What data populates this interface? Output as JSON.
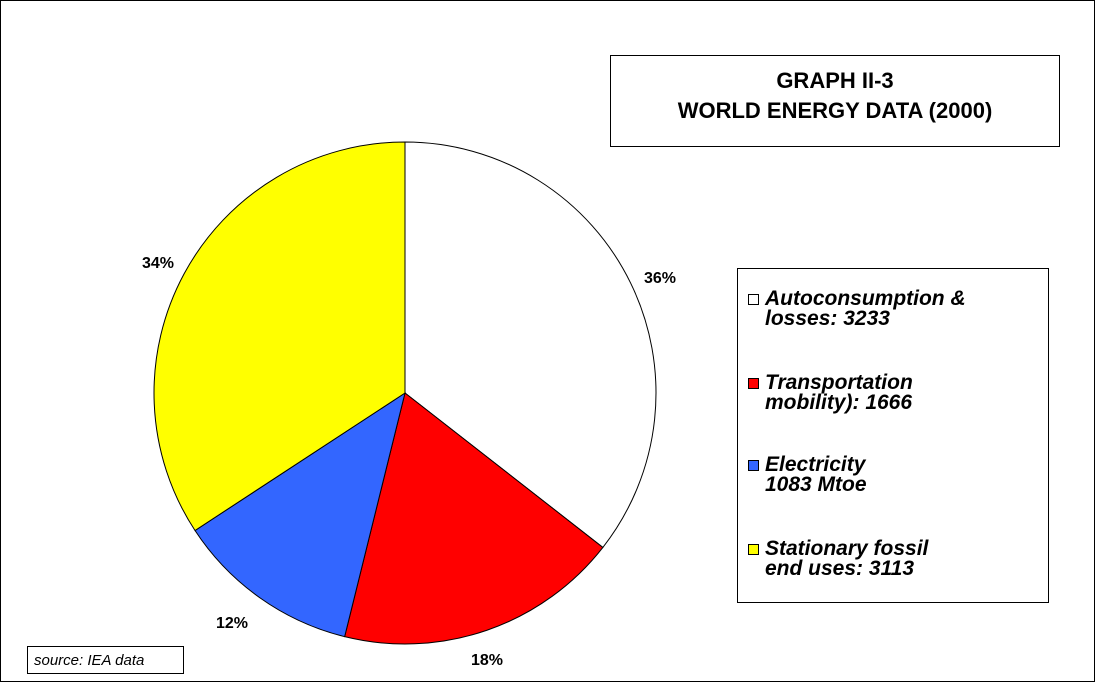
{
  "chart_data": {
    "type": "pie",
    "title": "GRAPH  II-3",
    "subtitle": "WORLD ENERGY DATA (2000)",
    "slices": [
      {
        "legend_line1": "Autoconsumption &",
        "legend_line2": "losses: 3233",
        "value": 3233,
        "percent_label": "36%",
        "color": "#ffffff"
      },
      {
        "legend_line1": "Transportation",
        "legend_line2": "mobility): 1666",
        "value": 1666,
        "percent_label": "18%",
        "color": "#ff0000"
      },
      {
        "legend_line1": "Electricity",
        "legend_line2": "1083 Mtoe",
        "value": 1083,
        "percent_label": "12%",
        "color": "#3366ff"
      },
      {
        "legend_line1": "Stationary fossil",
        "legend_line2": "end uses: 3113",
        "value": 3113,
        "percent_label": "34%",
        "color": "#ffff00"
      }
    ],
    "start_angle_deg": 0,
    "direction": "clockwise",
    "legend_position": "right",
    "source": "source: IEA data"
  }
}
